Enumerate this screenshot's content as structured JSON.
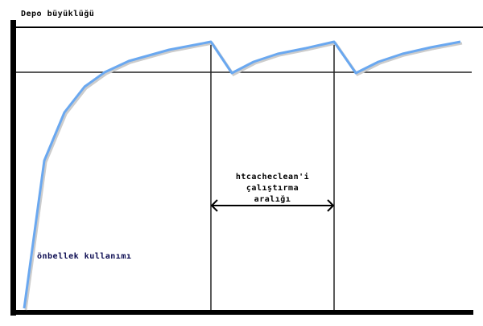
{
  "y_axis_label": "Depo büyüklüğü",
  "interval_label": [
    "htcacheclean'i",
    "çalıştırma",
    "aralığı"
  ],
  "curve_label": "önbellek kullanımı",
  "colors": {
    "curve": "#6aa8f0",
    "axes": "#000000",
    "curve_label": "#0a0a50"
  }
}
